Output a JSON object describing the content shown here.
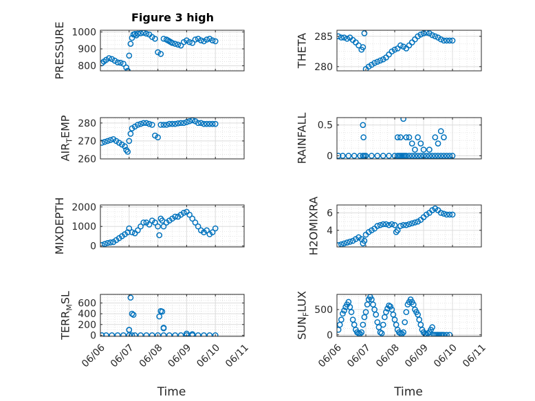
{
  "figure": {
    "title": "Figure 3 high",
    "marker_color": "#0072BD",
    "x_tick_labels": [
      "06/06",
      "06/07",
      "06/08",
      "06/09",
      "06/10",
      "06/11"
    ],
    "x_axis_label": "Time"
  },
  "chart_data": [
    {
      "type": "scatter",
      "ylabel": {
        "main": "PRESSURE",
        "sub": ""
      },
      "xlim": [
        0,
        5
      ],
      "ylim": [
        770,
        1010
      ],
      "yticks": [
        800,
        900,
        1000
      ],
      "grid": true,
      "x": [
        0.05,
        0.12,
        0.2,
        0.3,
        0.4,
        0.5,
        0.6,
        0.7,
        0.8,
        0.9,
        0.95,
        1.0,
        1.05,
        1.1,
        1.15,
        1.2,
        1.25,
        1.3,
        1.4,
        1.5,
        1.6,
        1.7,
        1.8,
        1.9,
        2.0,
        2.1,
        2.2,
        2.3,
        2.35,
        2.4,
        2.45,
        2.5,
        2.6,
        2.7,
        2.8,
        2.9,
        3.0,
        3.1,
        3.2,
        3.3,
        3.4,
        3.5,
        3.6,
        3.7,
        3.8,
        3.9,
        4.0
      ],
      "y": [
        815,
        825,
        835,
        845,
        840,
        830,
        820,
        818,
        812,
        790,
        770,
        860,
        930,
        965,
        985,
        988,
        980,
        990,
        992,
        995,
        990,
        985,
        970,
        960,
        880,
        870,
        960,
        955,
        950,
        945,
        940,
        935,
        930,
        925,
        920,
        940,
        950,
        940,
        935,
        955,
        960,
        950,
        945,
        955,
        960,
        950,
        945
      ]
    },
    {
      "type": "scatter",
      "ylabel": {
        "main": "THETA",
        "sub": ""
      },
      "xlim": [
        0,
        5
      ],
      "ylim": [
        279.3,
        286.0
      ],
      "yticks": [
        280,
        285
      ],
      "grid": true,
      "x": [
        0.05,
        0.15,
        0.25,
        0.35,
        0.45,
        0.55,
        0.65,
        0.75,
        0.85,
        0.9,
        0.95,
        1.0,
        1.1,
        1.2,
        1.3,
        1.4,
        1.5,
        1.6,
        1.7,
        1.8,
        1.9,
        2.0,
        2.1,
        2.2,
        2.3,
        2.4,
        2.5,
        2.6,
        2.7,
        2.8,
        2.9,
        3.0,
        3.1,
        3.2,
        3.3,
        3.4,
        3.5,
        3.6,
        3.7,
        3.8,
        3.9,
        4.0
      ],
      "y": [
        285,
        284.8,
        284.8,
        284.6,
        284.8,
        284.4,
        284,
        283.5,
        282.8,
        283.2,
        285.5,
        279.6,
        280,
        280.3,
        280.6,
        280.8,
        281,
        281.2,
        281.5,
        282,
        282.5,
        282.8,
        283,
        283.5,
        283.3,
        283,
        283.5,
        284,
        284.5,
        285,
        285.3,
        285.5,
        285.6,
        285.5,
        285.2,
        285,
        284.8,
        284.5,
        284.3,
        284.3,
        284.3,
        284.3
      ]
    },
    {
      "type": "scatter",
      "ylabel": {
        "main": "AIR",
        "sub": "T",
        "main2": "EMP"
      },
      "xlim": [
        0,
        5
      ],
      "ylim": [
        260,
        283
      ],
      "yticks": [
        260,
        270,
        280
      ],
      "grid": true,
      "x": [
        0.05,
        0.15,
        0.25,
        0.35,
        0.45,
        0.55,
        0.65,
        0.75,
        0.85,
        0.9,
        0.95,
        1.0,
        1.05,
        1.1,
        1.2,
        1.3,
        1.4,
        1.5,
        1.6,
        1.7,
        1.8,
        1.9,
        2.0,
        2.1,
        2.2,
        2.3,
        2.4,
        2.5,
        2.6,
        2.7,
        2.8,
        2.9,
        3.0,
        3.1,
        3.2,
        3.3,
        3.4,
        3.5,
        3.6,
        3.7,
        3.8,
        3.9,
        4.0
      ],
      "y": [
        269,
        269.5,
        270,
        270.5,
        271,
        270,
        269,
        268,
        267,
        265,
        264,
        270,
        274,
        277,
        278,
        279,
        279.5,
        280,
        280,
        279.5,
        279,
        273,
        272,
        279,
        279,
        279,
        279.5,
        279.5,
        279.5,
        279.8,
        280,
        280,
        280.5,
        281,
        281.5,
        281,
        280,
        280,
        279.5,
        279.5,
        279.5,
        279.5,
        279.5
      ]
    },
    {
      "type": "scatter",
      "ylabel": {
        "main": "RAINFALL",
        "sub": ""
      },
      "xlim": [
        0,
        5
      ],
      "ylim": [
        -0.05,
        0.62
      ],
      "yticks": [
        0,
        0.5
      ],
      "grid": true,
      "x": [
        0.05,
        0.2,
        0.4,
        0.6,
        0.8,
        0.9,
        0.95,
        1.0,
        1.2,
        1.4,
        1.6,
        1.8,
        2.0,
        2.1,
        2.15,
        2.2,
        2.25,
        2.3,
        2.35,
        2.4,
        2.5,
        2.6,
        2.7,
        2.8,
        2.9,
        3.0,
        3.1,
        3.2,
        3.3,
        3.4,
        3.5,
        3.6,
        3.7,
        3.8,
        3.9,
        4.0,
        0.9,
        0.92,
        2.1,
        2.2,
        2.3,
        2.4,
        2.5,
        2.6,
        2.7,
        2.8,
        2.9,
        3.0,
        3.2,
        3.4,
        3.5,
        3.6,
        3.7
      ],
      "y": [
        0,
        0,
        0,
        0,
        0,
        0,
        0,
        0,
        0,
        0,
        0,
        0,
        0,
        0,
        0,
        0,
        0,
        0,
        0,
        0,
        0,
        0,
        0,
        0,
        0,
        0,
        0,
        0,
        0,
        0,
        0,
        0,
        0,
        0,
        0,
        0,
        0.5,
        0.3,
        0.3,
        0.3,
        0.6,
        0.3,
        0.3,
        0.2,
        0.1,
        0.3,
        0.2,
        0.1,
        0.1,
        0.3,
        0.2,
        0.4,
        0.3
      ]
    },
    {
      "type": "scatter",
      "ylabel": {
        "main": "MIXDEPTH",
        "sub": ""
      },
      "xlim": [
        0,
        5
      ],
      "ylim": [
        -50,
        2100
      ],
      "yticks": [
        0,
        1000,
        2000
      ],
      "grid": true,
      "x": [
        0.05,
        0.15,
        0.25,
        0.35,
        0.45,
        0.55,
        0.65,
        0.75,
        0.85,
        0.95,
        1.0,
        1.1,
        1.2,
        1.3,
        1.4,
        1.5,
        1.6,
        1.7,
        1.8,
        1.9,
        2.0,
        2.05,
        2.1,
        2.15,
        2.2,
        2.3,
        2.4,
        2.5,
        2.6,
        2.7,
        2.8,
        2.9,
        3.0,
        3.1,
        3.2,
        3.3,
        3.4,
        3.5,
        3.6,
        3.7,
        3.8,
        3.9,
        4.0
      ],
      "y": [
        50,
        100,
        150,
        180,
        200,
        300,
        400,
        500,
        600,
        700,
        900,
        700,
        650,
        800,
        1000,
        1200,
        1200,
        1100,
        1300,
        1200,
        1000,
        550,
        1400,
        1300,
        1000,
        1200,
        1300,
        1400,
        1500,
        1500,
        1600,
        1700,
        1750,
        1600,
        1400,
        1200,
        1000,
        800,
        700,
        800,
        600,
        700,
        900
      ]
    },
    {
      "type": "scatter",
      "ylabel": {
        "main": "H2OMIXRA",
        "sub": ""
      },
      "xlim": [
        0,
        5
      ],
      "ylim": [
        2.1,
        6.9
      ],
      "yticks": [
        4,
        6
      ],
      "grid": true,
      "x": [
        0.05,
        0.15,
        0.25,
        0.35,
        0.45,
        0.55,
        0.65,
        0.75,
        0.85,
        0.9,
        0.95,
        1.0,
        1.1,
        1.2,
        1.3,
        1.4,
        1.5,
        1.6,
        1.7,
        1.8,
        1.9,
        2.0,
        2.05,
        2.1,
        2.2,
        2.3,
        2.4,
        2.5,
        2.6,
        2.7,
        2.8,
        2.9,
        3.0,
        3.1,
        3.2,
        3.3,
        3.4,
        3.5,
        3.6,
        3.7,
        3.8,
        3.9,
        4.0
      ],
      "y": [
        2.3,
        2.4,
        2.5,
        2.6,
        2.7,
        2.8,
        3.0,
        3.2,
        3.0,
        2.5,
        2.8,
        3.5,
        3.8,
        4.0,
        4.2,
        4.5,
        4.6,
        4.7,
        4.7,
        4.6,
        4.7,
        4.6,
        3.8,
        4.0,
        4.5,
        4.6,
        4.6,
        4.7,
        4.8,
        4.9,
        5.0,
        5.2,
        5.5,
        5.8,
        6.0,
        6.3,
        6.5,
        6.3,
        6.0,
        5.9,
        5.8,
        5.8,
        5.8
      ]
    },
    {
      "type": "scatter",
      "ylabel": {
        "main": "TERR",
        "sub": "M",
        "main2": "SL"
      },
      "xlim": [
        0,
        5
      ],
      "ylim": [
        -20,
        760
      ],
      "yticks": [
        0,
        200,
        400,
        600
      ],
      "grid": true,
      "x": [
        0.05,
        0.2,
        0.4,
        0.6,
        0.8,
        1.0,
        1.1,
        1.2,
        1.4,
        1.6,
        1.8,
        2.0,
        2.2,
        2.4,
        2.6,
        2.8,
        3.0,
        3.2,
        3.4,
        3.6,
        3.8,
        4.0,
        1.0,
        1.05,
        1.1,
        1.15,
        2.05,
        2.1,
        2.15,
        2.2,
        1.0,
        2.2,
        3.0,
        3.2
      ],
      "y": [
        0,
        0,
        0,
        0,
        0,
        0,
        0,
        0,
        0,
        0,
        0,
        0,
        0,
        0,
        0,
        0,
        0,
        0,
        0,
        0,
        0,
        0,
        100,
        700,
        400,
        380,
        350,
        450,
        440,
        130,
        100,
        140,
        30,
        20
      ]
    },
    {
      "type": "scatter",
      "ylabel": {
        "main": "SUN",
        "sub": "F",
        "main2": "LUX"
      },
      "xlim": [
        0,
        5
      ],
      "ylim": [
        -30,
        800
      ],
      "yticks": [
        0,
        500
      ],
      "grid": true,
      "x": [
        0.05,
        0.1,
        0.15,
        0.2,
        0.25,
        0.3,
        0.35,
        0.4,
        0.45,
        0.5,
        0.55,
        0.6,
        0.65,
        0.7,
        0.75,
        0.8,
        0.85,
        0.9,
        0.95,
        1.0,
        1.05,
        1.1,
        1.15,
        1.2,
        1.25,
        1.3,
        1.35,
        1.4,
        1.45,
        1.5,
        1.55,
        1.6,
        1.65,
        1.7,
        1.75,
        1.8,
        1.85,
        1.9,
        1.95,
        2.0,
        2.05,
        2.1,
        2.15,
        2.2,
        2.25,
        2.3,
        2.35,
        2.4,
        2.45,
        2.5,
        2.55,
        2.6,
        2.65,
        2.7,
        2.75,
        2.8,
        2.85,
        2.9,
        2.95,
        3.0,
        3.05,
        3.1,
        3.15,
        3.2,
        3.25,
        3.3,
        3.35,
        3.4,
        3.45,
        3.5,
        3.55,
        3.6,
        3.65,
        3.7,
        3.8,
        3.9
      ],
      "y": [
        100,
        200,
        300,
        420,
        480,
        550,
        600,
        650,
        550,
        450,
        300,
        200,
        100,
        50,
        30,
        20,
        50,
        200,
        350,
        450,
        600,
        700,
        750,
        700,
        600,
        500,
        400,
        250,
        150,
        50,
        30,
        200,
        350,
        450,
        520,
        580,
        560,
        500,
        400,
        300,
        200,
        100,
        50,
        30,
        20,
        50,
        250,
        450,
        600,
        650,
        700,
        650,
        600,
        500,
        450,
        400,
        300,
        200,
        100,
        50,
        20,
        10,
        30,
        50,
        100,
        150,
        0,
        0,
        0,
        0,
        0,
        0,
        0,
        0,
        0,
        0
      ]
    }
  ]
}
